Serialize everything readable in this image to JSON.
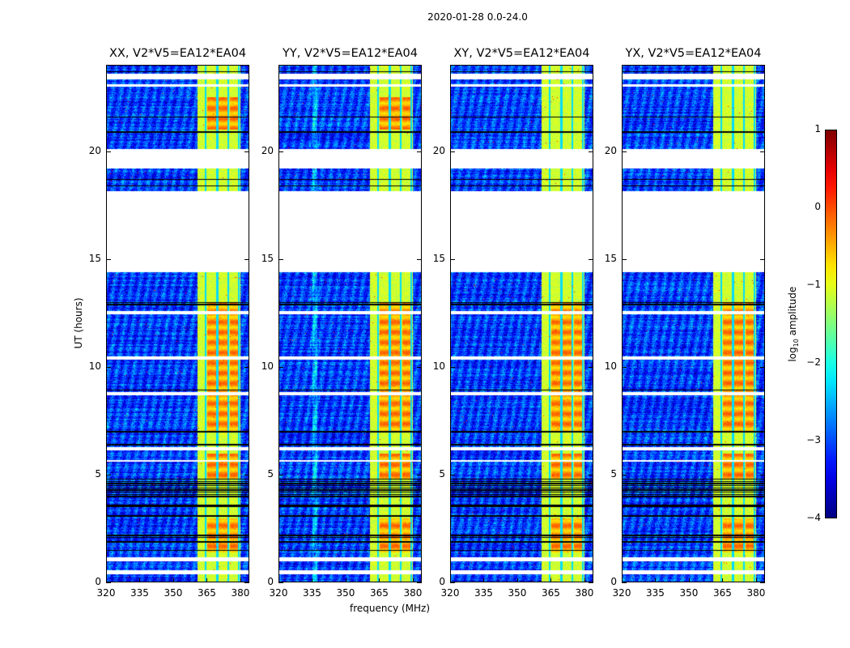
{
  "chart_data": {
    "type": "heatmap",
    "title": "2020-01-28 0.0-24.0",
    "xlabel": "frequency (MHz)",
    "ylabel": "UT (hours)",
    "xlim": [
      320,
      384
    ],
    "ylim": [
      0,
      24
    ],
    "xticks": [
      "320",
      "335",
      "350",
      "365",
      "380"
    ],
    "xtick_values": [
      320,
      335,
      350,
      365,
      380
    ],
    "yticks": [
      "0",
      "5",
      "10",
      "15",
      "20"
    ],
    "ytick_values": [
      0,
      5,
      10,
      15,
      20
    ],
    "panels": [
      {
        "title": "XX, V2*V5=EA12*EA04"
      },
      {
        "title": "YY, V2*V5=EA12*EA04"
      },
      {
        "title": "XY, V2*V5=EA12*EA04"
      },
      {
        "title": "YX, V2*V5=EA12*EA04"
      }
    ],
    "colorbar": {
      "label_prefix": "log",
      "label_sub": "10",
      "label_suffix": " amplitude",
      "range": [
        -4,
        1
      ],
      "ticks": [
        "1",
        "0",
        "−1",
        "−2",
        "−3",
        "−4"
      ],
      "tick_values": [
        1,
        0,
        -1,
        -2,
        -3,
        -4
      ],
      "colormap": "jet"
    },
    "bright_band_MHz": [
      360.5,
      380
    ],
    "flagged_hours": [
      [
        14.4,
        18.15
      ],
      [
        19.2,
        20.1
      ],
      [
        23.35,
        23.6
      ],
      [
        23.0,
        23.1
      ],
      [
        12.45,
        12.6
      ],
      [
        10.35,
        10.5
      ],
      [
        8.7,
        8.85
      ],
      [
        6.15,
        6.3
      ],
      [
        5.6,
        5.7
      ],
      [
        1.0,
        1.2
      ],
      [
        0.4,
        0.6
      ]
    ],
    "colors": {
      "background": "#ffffff",
      "axes": "#000000"
    }
  }
}
